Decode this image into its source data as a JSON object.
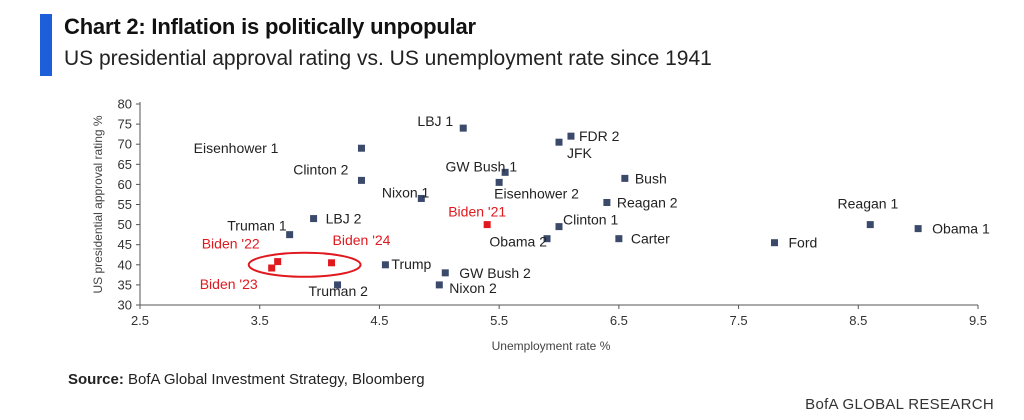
{
  "header": {
    "title": "Chart 2: Inflation is politically unpopular",
    "subtitle": "US presidential approval rating vs. US unemployment rate since 1941"
  },
  "footer": {
    "source_label": "Source:",
    "source_text": "BofA Global Investment Strategy, Bloomberg",
    "brand": "BofA GLOBAL RESEARCH"
  },
  "colors": {
    "accent": "#1d5fd8",
    "normal_point": "#3b4a6b",
    "highlight": "#e0191f"
  },
  "chart_data": {
    "type": "scatter",
    "xlabel": "Unemployment rate %",
    "ylabel": "US presidential approval rating %",
    "xlim": [
      2.5,
      9.5
    ],
    "ylim": [
      30,
      80
    ],
    "xticks": [
      "2.5",
      "3.5",
      "4.5",
      "5.5",
      "6.5",
      "7.5",
      "8.5",
      "9.5"
    ],
    "yticks": [
      "30",
      "35",
      "40",
      "45",
      "50",
      "55",
      "60",
      "65",
      "70",
      "75",
      "80"
    ],
    "grid": false,
    "points": [
      {
        "label": "LBJ 1",
        "x": 5.2,
        "y": 74,
        "highlight": false
      },
      {
        "label": "FDR 2",
        "x": 6.1,
        "y": 72,
        "highlight": false
      },
      {
        "label": "JFK",
        "x": 6.0,
        "y": 70.5,
        "highlight": false
      },
      {
        "label": "Eisenhower 1",
        "x": 4.35,
        "y": 69,
        "highlight": false
      },
      {
        "label": "GW Bush 1",
        "x": 5.55,
        "y": 63,
        "highlight": false
      },
      {
        "label": "Clinton 2",
        "x": 4.35,
        "y": 61,
        "highlight": false
      },
      {
        "label": "Bush",
        "x": 6.55,
        "y": 61.5,
        "highlight": false
      },
      {
        "label": "Eisenhower 2",
        "x": 5.5,
        "y": 60.5,
        "highlight": false
      },
      {
        "label": "Nixon 1",
        "x": 4.85,
        "y": 56.5,
        "highlight": false
      },
      {
        "label": "Reagan 2",
        "x": 6.4,
        "y": 55.5,
        "highlight": false
      },
      {
        "label": "Biden '21",
        "x": 5.4,
        "y": 50,
        "highlight": true
      },
      {
        "label": "Clinton 1",
        "x": 6.0,
        "y": 49.5,
        "highlight": false
      },
      {
        "label": "LBJ 2",
        "x": 3.95,
        "y": 51.5,
        "highlight": false
      },
      {
        "label": "Truman 1",
        "x": 3.75,
        "y": 47.5,
        "highlight": false
      },
      {
        "label": "Obama 2",
        "x": 5.9,
        "y": 46.5,
        "highlight": false
      },
      {
        "label": "Carter",
        "x": 6.5,
        "y": 46.5,
        "highlight": false
      },
      {
        "label": "Reagan 1",
        "x": 8.6,
        "y": 50,
        "highlight": false
      },
      {
        "label": "Obama 1",
        "x": 9.0,
        "y": 49,
        "highlight": false
      },
      {
        "label": "Ford",
        "x": 7.8,
        "y": 45.5,
        "highlight": false
      },
      {
        "label": "Biden '24",
        "x": 4.1,
        "y": 40.5,
        "highlight": true
      },
      {
        "label": "Biden '22",
        "x": 3.65,
        "y": 40.8,
        "highlight": true
      },
      {
        "label": "Biden '23",
        "x": 3.6,
        "y": 39.2,
        "highlight": true
      },
      {
        "label": "Trump",
        "x": 4.55,
        "y": 40,
        "highlight": false
      },
      {
        "label": "GW Bush 2",
        "x": 5.05,
        "y": 38,
        "highlight": false
      },
      {
        "label": "Nixon 2",
        "x": 5.0,
        "y": 35,
        "highlight": false
      },
      {
        "label": "Truman 2",
        "x": 4.15,
        "y": 35,
        "highlight": false
      }
    ]
  }
}
